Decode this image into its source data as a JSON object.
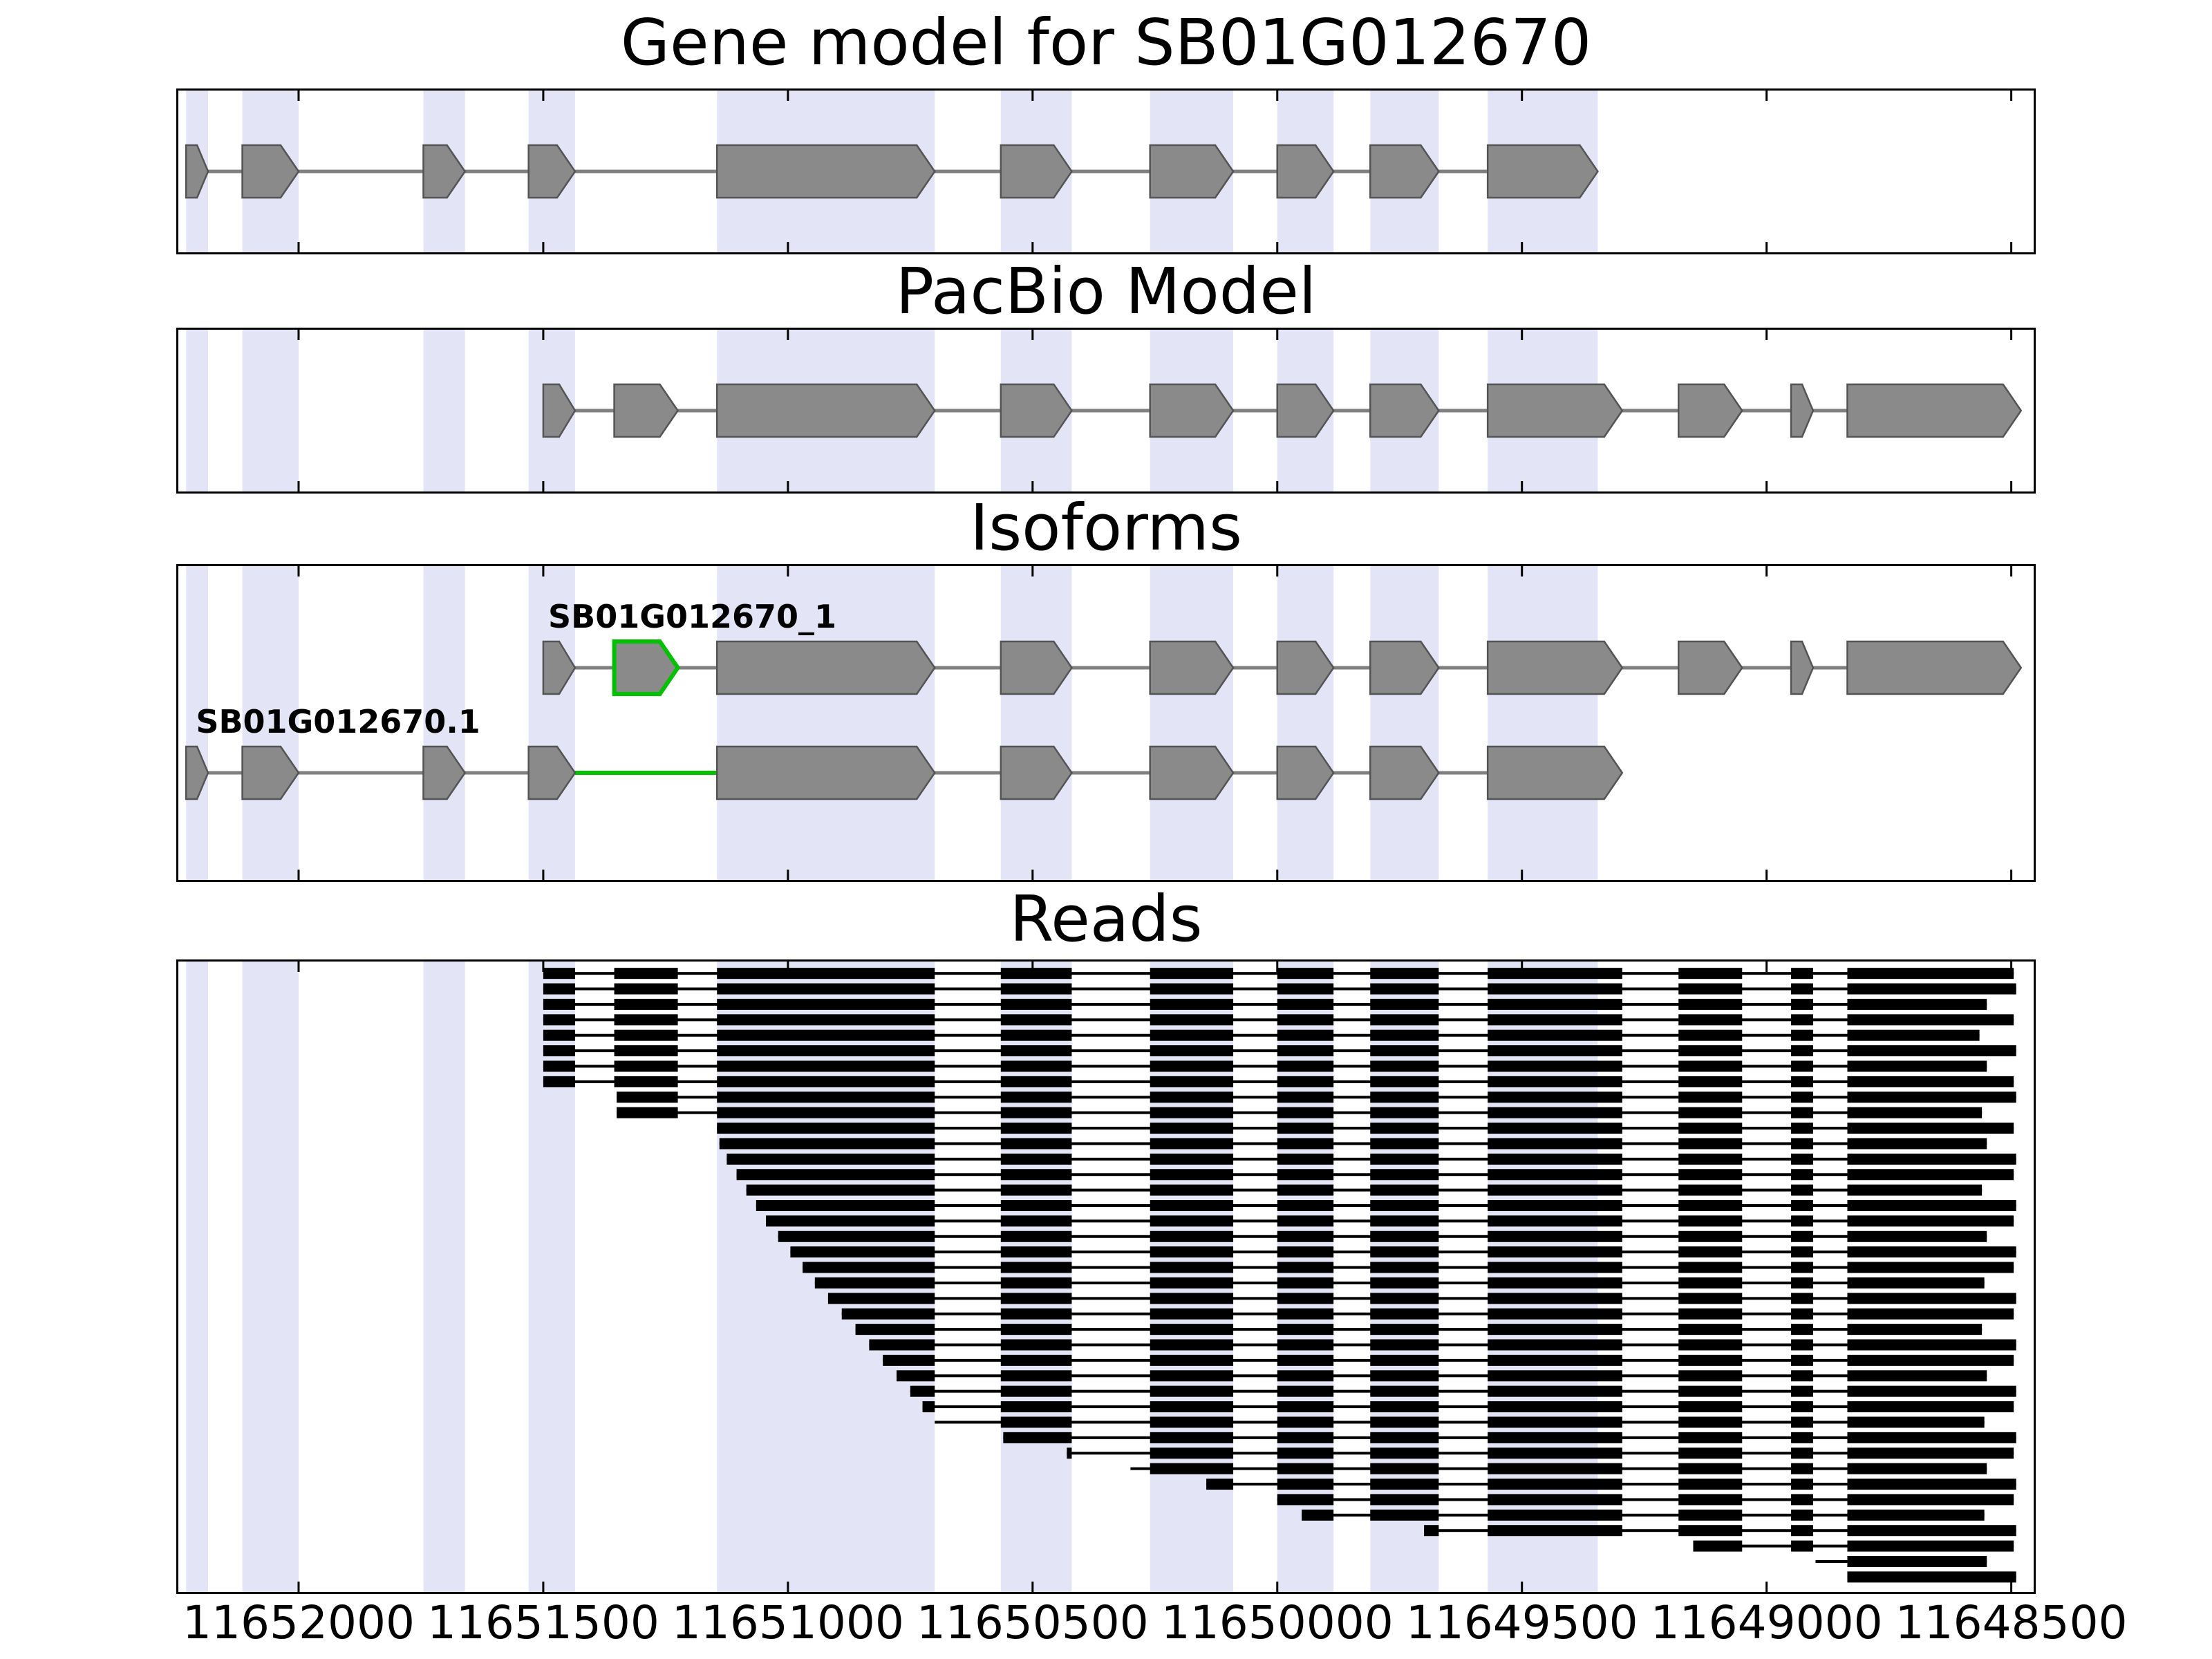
{
  "titles": {
    "gene_model": "Gene model for SB01G012670",
    "pacbio": "PacBio Model",
    "isoforms": "Isoforms",
    "reads": "Reads"
  },
  "x_axis": {
    "tick_labels": [
      "11652000",
      "11651500",
      "11651000",
      "11650500",
      "11650000",
      "11649500",
      "11649000",
      "11648500"
    ]
  },
  "isoform_labels": [
    "SB01G012670_1",
    "SB01G012670.1"
  ],
  "colors": {
    "exon_fill": "#8a8a8a",
    "exon_edge": "#545454",
    "intron_line": "#808080",
    "band_fill": "#e4e4f7",
    "highlight_green": "#00c000",
    "read_fill": "#000000",
    "panel_border": "#000000",
    "text": "#000000",
    "background": "#ffffff"
  },
  "chart_data": {
    "type": "gene-model-tracks",
    "gene_id": "SB01G012670",
    "orientation": "coordinates-decreasing-left-to-right",
    "x_range": [
      11652250,
      11648450
    ],
    "x_ticks": [
      11652000,
      11651500,
      11651000,
      11650500,
      11650000,
      11649500,
      11649000,
      11648500
    ],
    "x_tick_labels": [
      "11652000",
      "11651500",
      "11651000",
      "11650500",
      "11650000",
      "11649500",
      "11649000",
      "11648500"
    ],
    "panel_titles": [
      "Gene model for SB01G012670",
      "PacBio Model",
      "Isoforms",
      "Reads"
    ],
    "highlight_bands": [
      [
        11652230,
        11652185
      ],
      [
        11652115,
        11652000
      ],
      [
        11651745,
        11651660
      ],
      [
        11651530,
        11651435
      ],
      [
        11651145,
        11650700
      ],
      [
        11650565,
        11650420
      ],
      [
        11650260,
        11650090
      ],
      [
        11650000,
        11649885
      ],
      [
        11649810,
        11649670
      ],
      [
        11649570,
        11649345
      ]
    ],
    "tracks": {
      "gene_model": {
        "name": "SB01G012670",
        "exons": [
          [
            11652230,
            11652185
          ],
          [
            11652115,
            11652000
          ],
          [
            11651745,
            11651660
          ],
          [
            11651530,
            11651435
          ],
          [
            11651145,
            11650700
          ],
          [
            11650565,
            11650420
          ],
          [
            11650260,
            11650090
          ],
          [
            11650000,
            11649885
          ],
          [
            11649810,
            11649670
          ],
          [
            11649570,
            11649345
          ]
        ]
      },
      "pacbio_model": {
        "name": "PacBio Model",
        "exons": [
          [
            11651500,
            11651435
          ],
          [
            11651355,
            11651225
          ],
          [
            11651145,
            11650700
          ],
          [
            11650565,
            11650420
          ],
          [
            11650260,
            11650090
          ],
          [
            11650000,
            11649885
          ],
          [
            11649810,
            11649670
          ],
          [
            11649570,
            11649295
          ],
          [
            11649180,
            11649050
          ],
          [
            11648950,
            11648905
          ],
          [
            11648835,
            11648480
          ]
        ]
      },
      "isoforms": [
        {
          "name": "SB01G012670_1",
          "label_x": 11651490,
          "green_exon_index": 1,
          "exons": [
            [
              11651500,
              11651435
            ],
            [
              11651355,
              11651225
            ],
            [
              11651145,
              11650700
            ],
            [
              11650565,
              11650420
            ],
            [
              11650260,
              11650090
            ],
            [
              11650000,
              11649885
            ],
            [
              11649810,
              11649670
            ],
            [
              11649570,
              11649295
            ],
            [
              11649180,
              11649050
            ],
            [
              11648950,
              11648905
            ],
            [
              11648835,
              11648480
            ]
          ]
        },
        {
          "name": "SB01G012670.1",
          "label_x": 11652210,
          "green_intron": [
            11651435,
            11651145
          ],
          "exons": [
            [
              11652230,
              11652185
            ],
            [
              11652115,
              11652000
            ],
            [
              11651745,
              11651660
            ],
            [
              11651530,
              11651435
            ],
            [
              11651145,
              11650700
            ],
            [
              11650565,
              11650420
            ],
            [
              11650260,
              11650090
            ],
            [
              11650000,
              11649885
            ],
            [
              11649810,
              11649670
            ],
            [
              11649570,
              11649295
            ]
          ]
        }
      ],
      "reads": [
        [
          11651500,
          11648495
        ],
        [
          11651500,
          11648490
        ],
        [
          11651500,
          11648550
        ],
        [
          11651500,
          11648495
        ],
        [
          11651500,
          11648565
        ],
        [
          11651500,
          11648490
        ],
        [
          11651500,
          11648550
        ],
        [
          11651500,
          11648495
        ],
        [
          11651350,
          11648490
        ],
        [
          11651350,
          11648560
        ],
        [
          11651145,
          11648495
        ],
        [
          11651140,
          11648550
        ],
        [
          11651125,
          11648490
        ],
        [
          11651105,
          11648495
        ],
        [
          11651085,
          11648560
        ],
        [
          11651065,
          11648490
        ],
        [
          11651045,
          11648495
        ],
        [
          11651020,
          11648550
        ],
        [
          11650995,
          11648490
        ],
        [
          11650970,
          11648495
        ],
        [
          11650945,
          11648555
        ],
        [
          11650918,
          11648490
        ],
        [
          11650890,
          11648495
        ],
        [
          11650862,
          11648560
        ],
        [
          11650834,
          11648490
        ],
        [
          11650806,
          11648495
        ],
        [
          11650778,
          11648550
        ],
        [
          11650750,
          11648490
        ],
        [
          11650725,
          11648495
        ],
        [
          11650700,
          11648555
        ],
        [
          11650560,
          11648490
        ],
        [
          11650430,
          11648495
        ],
        [
          11650300,
          11648550
        ],
        [
          11650145,
          11648490
        ],
        [
          11650000,
          11648495
        ],
        [
          11649950,
          11648555
        ],
        [
          11649700,
          11648490
        ],
        [
          11649150,
          11648495
        ],
        [
          11648900,
          11648550
        ],
        [
          11648835,
          11648490
        ]
      ]
    }
  }
}
